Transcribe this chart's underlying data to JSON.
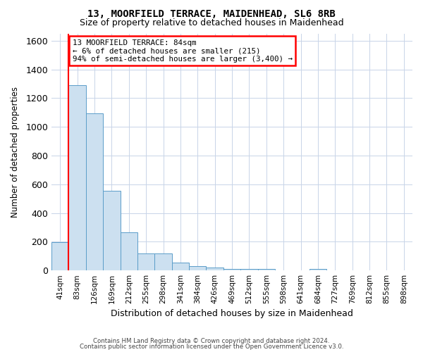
{
  "title": "13, MOORFIELD TERRACE, MAIDENHEAD, SL6 8RB",
  "subtitle": "Size of property relative to detached houses in Maidenhead",
  "xlabel": "Distribution of detached houses by size in Maidenhead",
  "ylabel": "Number of detached properties",
  "categories": [
    "41sqm",
    "83sqm",
    "126sqm",
    "169sqm",
    "212sqm",
    "255sqm",
    "298sqm",
    "341sqm",
    "384sqm",
    "426sqm",
    "469sqm",
    "512sqm",
    "555sqm",
    "598sqm",
    "641sqm",
    "684sqm",
    "727sqm",
    "769sqm",
    "812sqm",
    "855sqm",
    "898sqm"
  ],
  "values": [
    195,
    1290,
    1095,
    555,
    265,
    120,
    120,
    57,
    30,
    22,
    13,
    13,
    13,
    2,
    0,
    13,
    0,
    0,
    0,
    0,
    0
  ],
  "bar_color": "#cce0f0",
  "bar_edge_color": "#5b9dc9",
  "annotation_text": "13 MOORFIELD TERRACE: 84sqm\n← 6% of detached houses are smaller (215)\n94% of semi-detached houses are larger (3,400) →",
  "annotation_box_color": "white",
  "annotation_box_edge_color": "red",
  "red_line_color": "red",
  "red_line_x": 0.5,
  "ylim": [
    0,
    1650
  ],
  "yticks": [
    0,
    200,
    400,
    600,
    800,
    1000,
    1200,
    1400,
    1600
  ],
  "footer_line1": "Contains HM Land Registry data © Crown copyright and database right 2024.",
  "footer_line2": "Contains public sector information licensed under the Open Government Licence v3.0.",
  "bg_color": "white",
  "grid_color": "#c8d4e8"
}
